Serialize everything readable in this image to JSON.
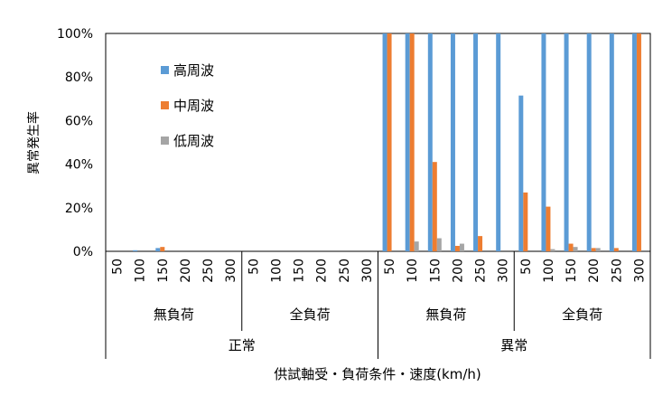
{
  "chart_data": {
    "type": "bar",
    "ylabel": "異常発生率",
    "xlabel": "供試軸受・負荷条件・速度(km/h)",
    "ylim": [
      0,
      100
    ],
    "yticks": [
      "0%",
      "20%",
      "40%",
      "60%",
      "80%",
      "100%"
    ],
    "categories": [
      "50",
      "100",
      "150",
      "200",
      "250",
      "300",
      "50",
      "100",
      "150",
      "200",
      "250",
      "300",
      "50",
      "100",
      "150",
      "200",
      "250",
      "300",
      "50",
      "100",
      "150",
      "200",
      "250",
      "300"
    ],
    "groups_level1": [
      {
        "label": "無負荷",
        "span": 6
      },
      {
        "label": "全負荷",
        "span": 6
      },
      {
        "label": "無負荷",
        "span": 6
      },
      {
        "label": "全負荷",
        "span": 6
      }
    ],
    "groups_level2": [
      {
        "label": "正常",
        "span": 12
      },
      {
        "label": "異常",
        "span": 12
      }
    ],
    "legend_position": "upper-left",
    "series": [
      {
        "name": "高周波",
        "color": "#5B9BD5",
        "values": [
          0,
          0.5,
          1.5,
          0,
          0,
          0,
          0,
          0,
          0,
          0,
          0,
          0,
          100,
          100,
          100,
          100,
          100,
          100,
          71.5,
          100,
          100,
          100,
          100,
          100
        ]
      },
      {
        "name": "中周波",
        "color": "#ED7D31",
        "values": [
          0,
          0,
          2,
          0,
          0,
          0,
          0,
          0,
          0,
          0,
          0,
          0,
          100,
          100,
          41,
          2.5,
          7,
          0,
          27,
          20.5,
          3.5,
          1.5,
          1.5,
          100
        ]
      },
      {
        "name": "低周波",
        "color": "#A5A5A5",
        "values": [
          0,
          0,
          0,
          0,
          0,
          0,
          0,
          0,
          0,
          0,
          0,
          0,
          0,
          4.5,
          6,
          3.5,
          0,
          0,
          0,
          1,
          2,
          1.5,
          0,
          0
        ]
      }
    ]
  }
}
